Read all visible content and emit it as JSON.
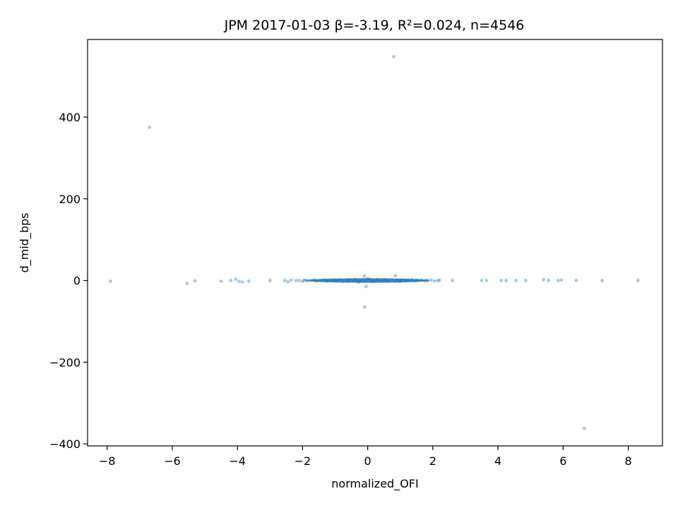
{
  "chart_data": {
    "type": "scatter",
    "title": "JPM 2017-01-03  β=-3.19, R²=0.024, n=4546",
    "xlabel": "normalized_OFI",
    "ylabel": "d_mid_bps",
    "xlim": [
      -8.6,
      9.05
    ],
    "ylim": [
      -405,
      590
    ],
    "xticks": [
      -8,
      -6,
      -4,
      -2,
      0,
      2,
      4,
      6,
      8
    ],
    "yticks": [
      -400,
      -200,
      0,
      200,
      400
    ],
    "xtick_labels": [
      "−8",
      "−6",
      "−4",
      "−2",
      "0",
      "2",
      "4",
      "6",
      "8"
    ],
    "ytick_labels": [
      "−400",
      "−200",
      "0",
      "200",
      "400"
    ],
    "grid": false,
    "marker_color": "#1f77b4",
    "marker_alpha": 0.4,
    "series": [
      {
        "points": [
          [
            0.8,
            548
          ],
          [
            -6.7,
            375
          ],
          [
            6.65,
            -362
          ],
          [
            -0.1,
            -65
          ],
          [
            -0.05,
            -15
          ],
          [
            0.85,
            12
          ],
          [
            -0.1,
            11
          ],
          [
            -7.9,
            -2
          ],
          [
            -5.55,
            -7
          ],
          [
            -5.3,
            -1
          ],
          [
            -4.5,
            -2
          ],
          [
            -4.2,
            0
          ],
          [
            -4.05,
            3
          ],
          [
            -3.95,
            -2
          ],
          [
            -3.85,
            -4
          ],
          [
            -3.65,
            -2
          ],
          [
            -3.0,
            0
          ],
          [
            -2.55,
            0
          ],
          [
            -2.45,
            -3
          ],
          [
            -2.35,
            1
          ],
          [
            -2.1,
            0
          ],
          [
            -2.0,
            -2
          ],
          [
            -1.95,
            1
          ],
          [
            -1.85,
            -1
          ],
          [
            -1.75,
            0
          ],
          [
            -1.65,
            2
          ],
          [
            -1.55,
            -1
          ],
          [
            -1.45,
            0
          ],
          [
            -1.35,
            1
          ],
          [
            -1.25,
            -2
          ],
          [
            -1.15,
            0
          ],
          [
            -1.05,
            2
          ],
          [
            -0.95,
            -1
          ],
          [
            -0.85,
            1
          ],
          [
            -0.75,
            -2
          ],
          [
            -0.65,
            0
          ],
          [
            -0.55,
            2
          ],
          [
            -0.45,
            -1
          ],
          [
            -0.35,
            1
          ],
          [
            -0.25,
            -3
          ],
          [
            -0.15,
            2
          ],
          [
            -0.05,
            0
          ],
          [
            0.05,
            3
          ],
          [
            0.15,
            -1
          ],
          [
            0.25,
            1
          ],
          [
            0.35,
            -2
          ],
          [
            0.45,
            0
          ],
          [
            0.55,
            2
          ],
          [
            0.65,
            -1
          ],
          [
            0.75,
            1
          ],
          [
            0.85,
            -2
          ],
          [
            0.95,
            0
          ],
          [
            1.05,
            1
          ],
          [
            1.15,
            -1
          ],
          [
            1.25,
            0
          ],
          [
            1.35,
            2
          ],
          [
            1.45,
            -1
          ],
          [
            1.55,
            0
          ],
          [
            1.65,
            1
          ],
          [
            1.75,
            -1
          ],
          [
            1.85,
            0
          ],
          [
            1.95,
            1
          ],
          [
            2.05,
            -1
          ],
          [
            2.15,
            0
          ],
          [
            2.6,
            0
          ],
          [
            3.5,
            0
          ],
          [
            3.65,
            0
          ],
          [
            4.1,
            0
          ],
          [
            4.25,
            0
          ],
          [
            4.55,
            0
          ],
          [
            4.85,
            0
          ],
          [
            5.4,
            2
          ],
          [
            5.55,
            0
          ],
          [
            5.85,
            0
          ],
          [
            5.95,
            1
          ],
          [
            6.4,
            0
          ],
          [
            7.2,
            0
          ],
          [
            8.3,
            0
          ],
          [
            -1.3,
            0.5
          ],
          [
            -0.9,
            1.5
          ],
          [
            -0.6,
            -0.5
          ],
          [
            -0.2,
            0.5
          ],
          [
            0.1,
            -0.5
          ],
          [
            0.3,
            1.5
          ],
          [
            0.6,
            -1.5
          ],
          [
            0.9,
            0.5
          ],
          [
            1.2,
            -0.5
          ],
          [
            1.5,
            0.5
          ],
          [
            -1.0,
            -0.5
          ],
          [
            -0.4,
            2.5
          ],
          [
            0.2,
            -2.5
          ],
          [
            0.5,
            0.5
          ],
          [
            1.0,
            -2.5
          ],
          [
            1.8,
            0.5
          ],
          [
            -1.6,
            -0.5
          ],
          [
            -1.9,
            0.5
          ],
          [
            2.2,
            0.5
          ],
          [
            -2.2,
            -0.5
          ],
          [
            0.0,
            5
          ],
          [
            -0.3,
            -4
          ]
        ]
      }
    ]
  }
}
